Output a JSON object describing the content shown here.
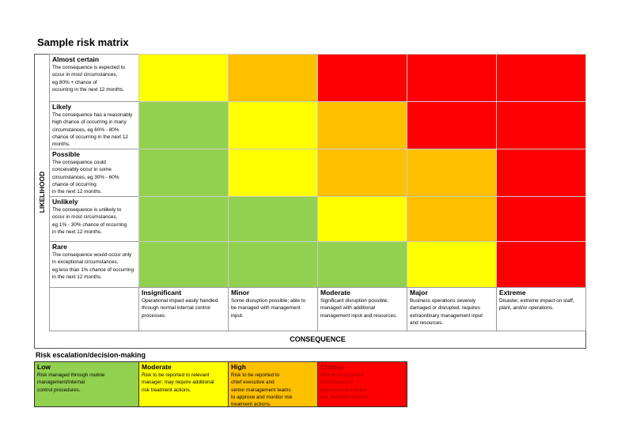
{
  "title": "Sample risk matrix",
  "likelihood_label": "LIKELIHOOD",
  "consequence_label": "CONSEQUENCE",
  "likelihood": [
    {
      "title": "Almost certain",
      "lines": [
        "The consequence is expected to",
        "occur in most circumstances,",
        "eg 80% + chance of",
        "occurring in the next 12 months."
      ]
    },
    {
      "title": "Likely",
      "lines": [
        "The consequence has a reasonably",
        "high chance of occurring in many",
        "circumstances, eg 60% - 80%",
        "chance of occurring in the next 12",
        "months."
      ]
    },
    {
      "title": "Possible",
      "lines": [
        "The consequence could",
        "conceivably occur in some",
        "circumstances, eg 30% - 60%",
        "chance of occurring",
        "in the next 12 months."
      ]
    },
    {
      "title": "Unlikely",
      "lines": [
        "The consequence is unlikely to",
        "occur in most circumstances,",
        "eg 1% - 30% chance of occurring",
        "in the next 12 months."
      ]
    },
    {
      "title": "Rare",
      "lines": [
        "The consequence would occur only",
        "in exceptional circumstances,",
        "eg less than 1% chance of occurring",
        "in the next 12 months."
      ]
    }
  ],
  "consequence": [
    {
      "title": "Insignificant",
      "lines": [
        "Operational impact easily handled",
        "through normal internal control",
        "processes."
      ]
    },
    {
      "title": "Minor",
      "lines": [
        "Some disruption possible; able to",
        "be managed with management",
        "input."
      ]
    },
    {
      "title": "Moderate",
      "lines": [
        "Significant disruption possible;",
        "managed with additional",
        "management input and resources."
      ]
    },
    {
      "title": "Major",
      "lines": [
        "Business operations severely",
        "damaged or disrupted; requires",
        "extraordinary management input",
        "and resources."
      ]
    },
    {
      "title": "Extreme",
      "lines": [
        "Disaster, extreme impact on staff,",
        "plant, and/or operations."
      ]
    }
  ],
  "cell_colors": [
    [
      "#ffff00",
      "#ffc000",
      "#ff0000",
      "#ff0000",
      "#ff0000"
    ],
    [
      "#92d050",
      "#ffff00",
      "#ffc000",
      "#ff0000",
      "#ff0000"
    ],
    [
      "#92d050",
      "#ffff00",
      "#ffc000",
      "#ffc000",
      "#ff0000"
    ],
    [
      "#92d050",
      "#92d050",
      "#ffff00",
      "#ffc000",
      "#ff0000"
    ],
    [
      "#92d050",
      "#92d050",
      "#92d050",
      "#ffff00",
      "#ff0000"
    ]
  ],
  "escalation": {
    "title": "Risk escalation/decision-making",
    "levels": [
      {
        "title": "Low",
        "color": "#92d050",
        "lines": [
          "Risk managed through routine",
          "management/internal",
          "control procedures."
        ]
      },
      {
        "title": "Moderate",
        "color": "#ffff00",
        "lines": [
          "Risk to be reported to relevant",
          "manager; may require additional",
          "risk treatment actions."
        ]
      },
      {
        "title": "High",
        "color": "#ffc000",
        "lines": [
          "Risk to be reported to",
          "chief executive and",
          "senior management teams",
          "to approve and monitor risk",
          "treatment actions."
        ]
      },
      {
        "title": "Critical",
        "color": "#ff0000",
        "lines": [
          "Risk to be reported",
          "to the board to",
          "approve and monitor",
          "risk treatment actions."
        ]
      }
    ]
  }
}
